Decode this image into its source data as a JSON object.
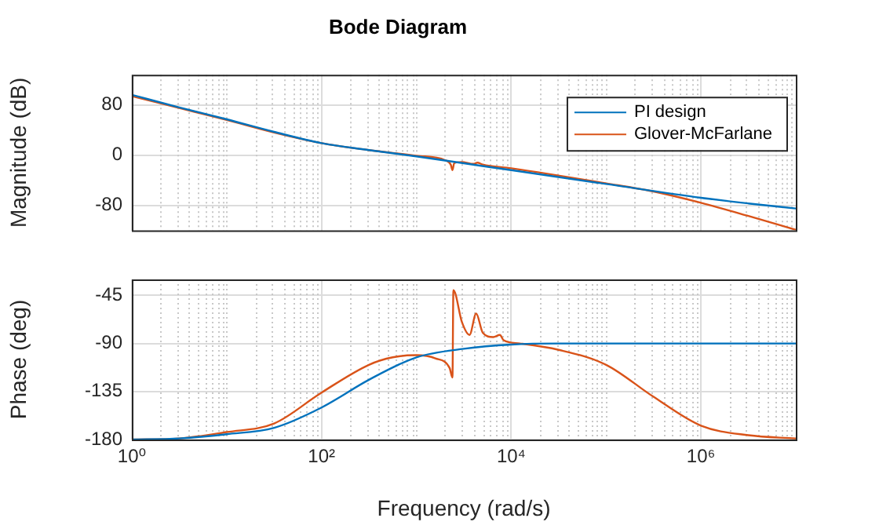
{
  "chart_data": [
    {
      "type": "line",
      "title": "Bode Diagram",
      "ylabel": "Magnitude (dB)",
      "log": "x",
      "grid": true,
      "legend": "top right",
      "tick_labels": "y",
      "xlim": [
        1,
        10000000
      ],
      "xticks": [
        1,
        100,
        10000,
        1000000
      ],
      "ylim": [
        -120,
        128
      ],
      "yticks": [
        -80,
        0,
        80
      ],
      "series": [
        {
          "name": "PI design",
          "color": "#0072bd",
          "x": [
            1,
            3.16,
            10,
            31.6,
            100,
            316,
            1000,
            3162,
            10000,
            100000,
            1000000,
            3162278,
            10000000
          ],
          "values": [
            96,
            76,
            57,
            37,
            19,
            8,
            -2,
            -13,
            -24,
            -46,
            -68,
            -77,
            -85
          ]
        },
        {
          "name": "Glover-McFarlane",
          "color": "#d95319",
          "x": [
            1,
            3.16,
            10,
            31.6,
            100,
            316,
            1000,
            2000,
            2300,
            2400,
            2500,
            3000,
            4000,
            4400,
            5000,
            10000,
            100000,
            316228,
            1000000,
            3162278,
            10000000
          ],
          "values": [
            94,
            75,
            56,
            36,
            19,
            8,
            -1,
            -8,
            -15,
            -24,
            -13,
            -11,
            -14,
            -12,
            -15,
            -21,
            -45,
            -58,
            -76,
            -97,
            -119
          ]
        }
      ]
    },
    {
      "type": "line",
      "xlabel": "Frequency (rad/s)",
      "ylabel": "Phase (deg)",
      "log": "x",
      "grid": true,
      "xlim": [
        1,
        10000000
      ],
      "xticks": [
        {
          "value": 1,
          "label": "10⁰"
        },
        {
          "value": 100,
          "label": "10²"
        },
        {
          "value": 10000,
          "label": "10⁴"
        },
        {
          "value": 1000000,
          "label": "10⁶"
        }
      ],
      "ylim": [
        -180,
        -30
      ],
      "yticks": [
        -180,
        -135,
        -90,
        -45
      ],
      "series": [
        {
          "color": "#0072bd",
          "x": [
            1,
            3.16,
            10,
            31.6,
            100,
            316,
            1000,
            3162,
            10000,
            31623,
            10000000
          ],
          "values": [
            -180,
            -179,
            -175,
            -169,
            -150,
            -124,
            -103,
            -95,
            -91,
            -90,
            -90
          ]
        },
        {
          "color": "#d95319",
          "x": [
            1,
            3.16,
            10,
            31.6,
            100,
            316,
            562,
            1000,
            1585,
            2239,
            2399,
            2455,
            3020,
            3631,
            4266,
            5012,
            6457,
            7586,
            8318,
            12303,
            31623,
            100000,
            316228,
            1000000,
            3162278,
            10000000
          ],
          "values": [
            -180,
            -179,
            -173,
            -165,
            -136,
            -110,
            -103,
            -101,
            -104,
            -113,
            -122,
            -40,
            -70,
            -82,
            -62,
            -80,
            -84,
            -82,
            -87,
            -90,
            -96,
            -110,
            -140,
            -167,
            -176,
            -179
          ]
        }
      ]
    }
  ]
}
